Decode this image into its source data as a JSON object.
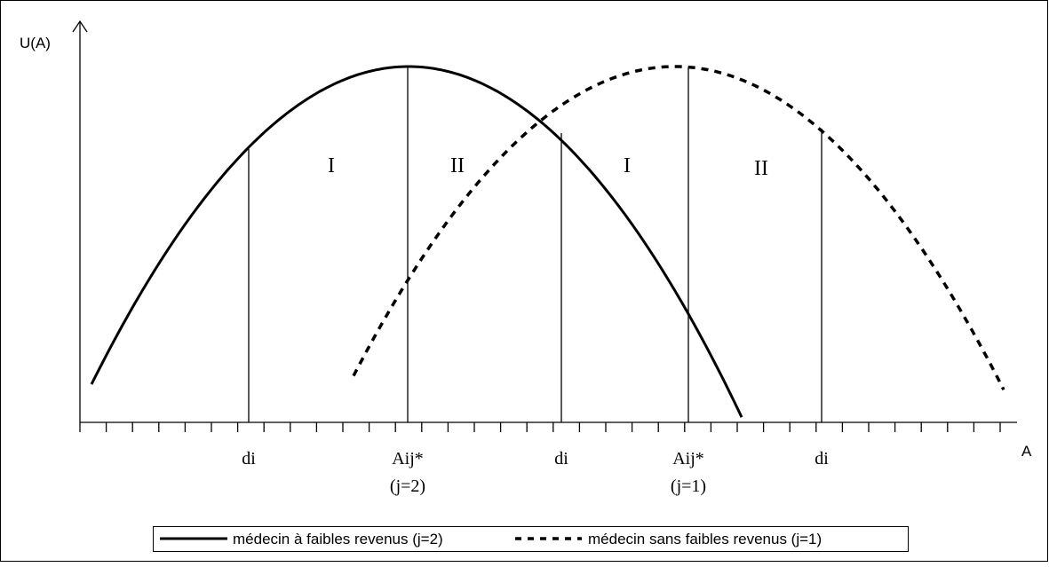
{
  "axes": {
    "y_label": "U(A)",
    "x_label": "A"
  },
  "markers": [
    {
      "label": "di"
    },
    {
      "label": "Aij*",
      "sub": "(j=2)"
    },
    {
      "label": "di"
    },
    {
      "label": "Aij*",
      "sub": "(j=1)"
    },
    {
      "label": "di"
    }
  ],
  "regions": [
    "I",
    "II",
    "I",
    "II"
  ],
  "legend": [
    "médecin à faibles revenus (j=2)",
    "médecin sans faibles revenus (j=1)"
  ]
}
